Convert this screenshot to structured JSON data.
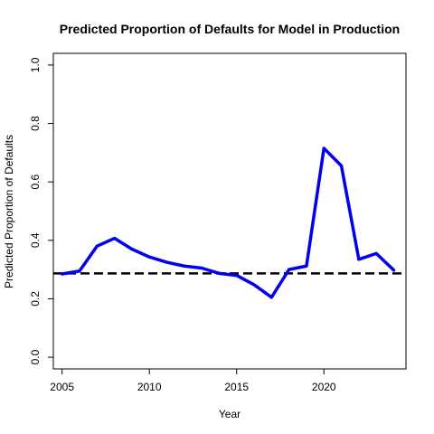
{
  "chart_data": {
    "type": "line",
    "title": "Predicted Proportion of Defaults for Model in Production",
    "xlabel": "Year",
    "ylabel": "Predicted Proportion of Defaults",
    "xlim": [
      2004.5,
      2024.7
    ],
    "ylim": [
      -0.04,
      1.04
    ],
    "x_ticks": [
      2005,
      2010,
      2015,
      2020
    ],
    "y_ticks": [
      0.0,
      0.2,
      0.4,
      0.6,
      0.8,
      1.0
    ],
    "x_tick_labels": [
      "2005",
      "2010",
      "2015",
      "2020"
    ],
    "y_tick_labels": [
      "0.0",
      "0.2",
      "0.4",
      "0.6",
      "0.8",
      "1.0"
    ],
    "grid": false,
    "legend": "none",
    "series": [
      {
        "color": "#0000ee",
        "style": "solid",
        "x": [
          2005,
          2006,
          2007,
          2008,
          2009,
          2010,
          2011,
          2012,
          2013,
          2014,
          2015,
          2016,
          2017,
          2018,
          2019,
          2020,
          2021,
          2022,
          2023,
          2024
        ],
        "y": [
          0.285,
          0.295,
          0.38,
          0.407,
          0.37,
          0.343,
          0.325,
          0.312,
          0.305,
          0.287,
          0.28,
          0.248,
          0.205,
          0.3,
          0.312,
          0.715,
          0.655,
          0.335,
          0.355,
          0.298
        ]
      }
    ],
    "reference_line": {
      "y": 0.287,
      "color": "#000000",
      "style": "dashed"
    }
  }
}
